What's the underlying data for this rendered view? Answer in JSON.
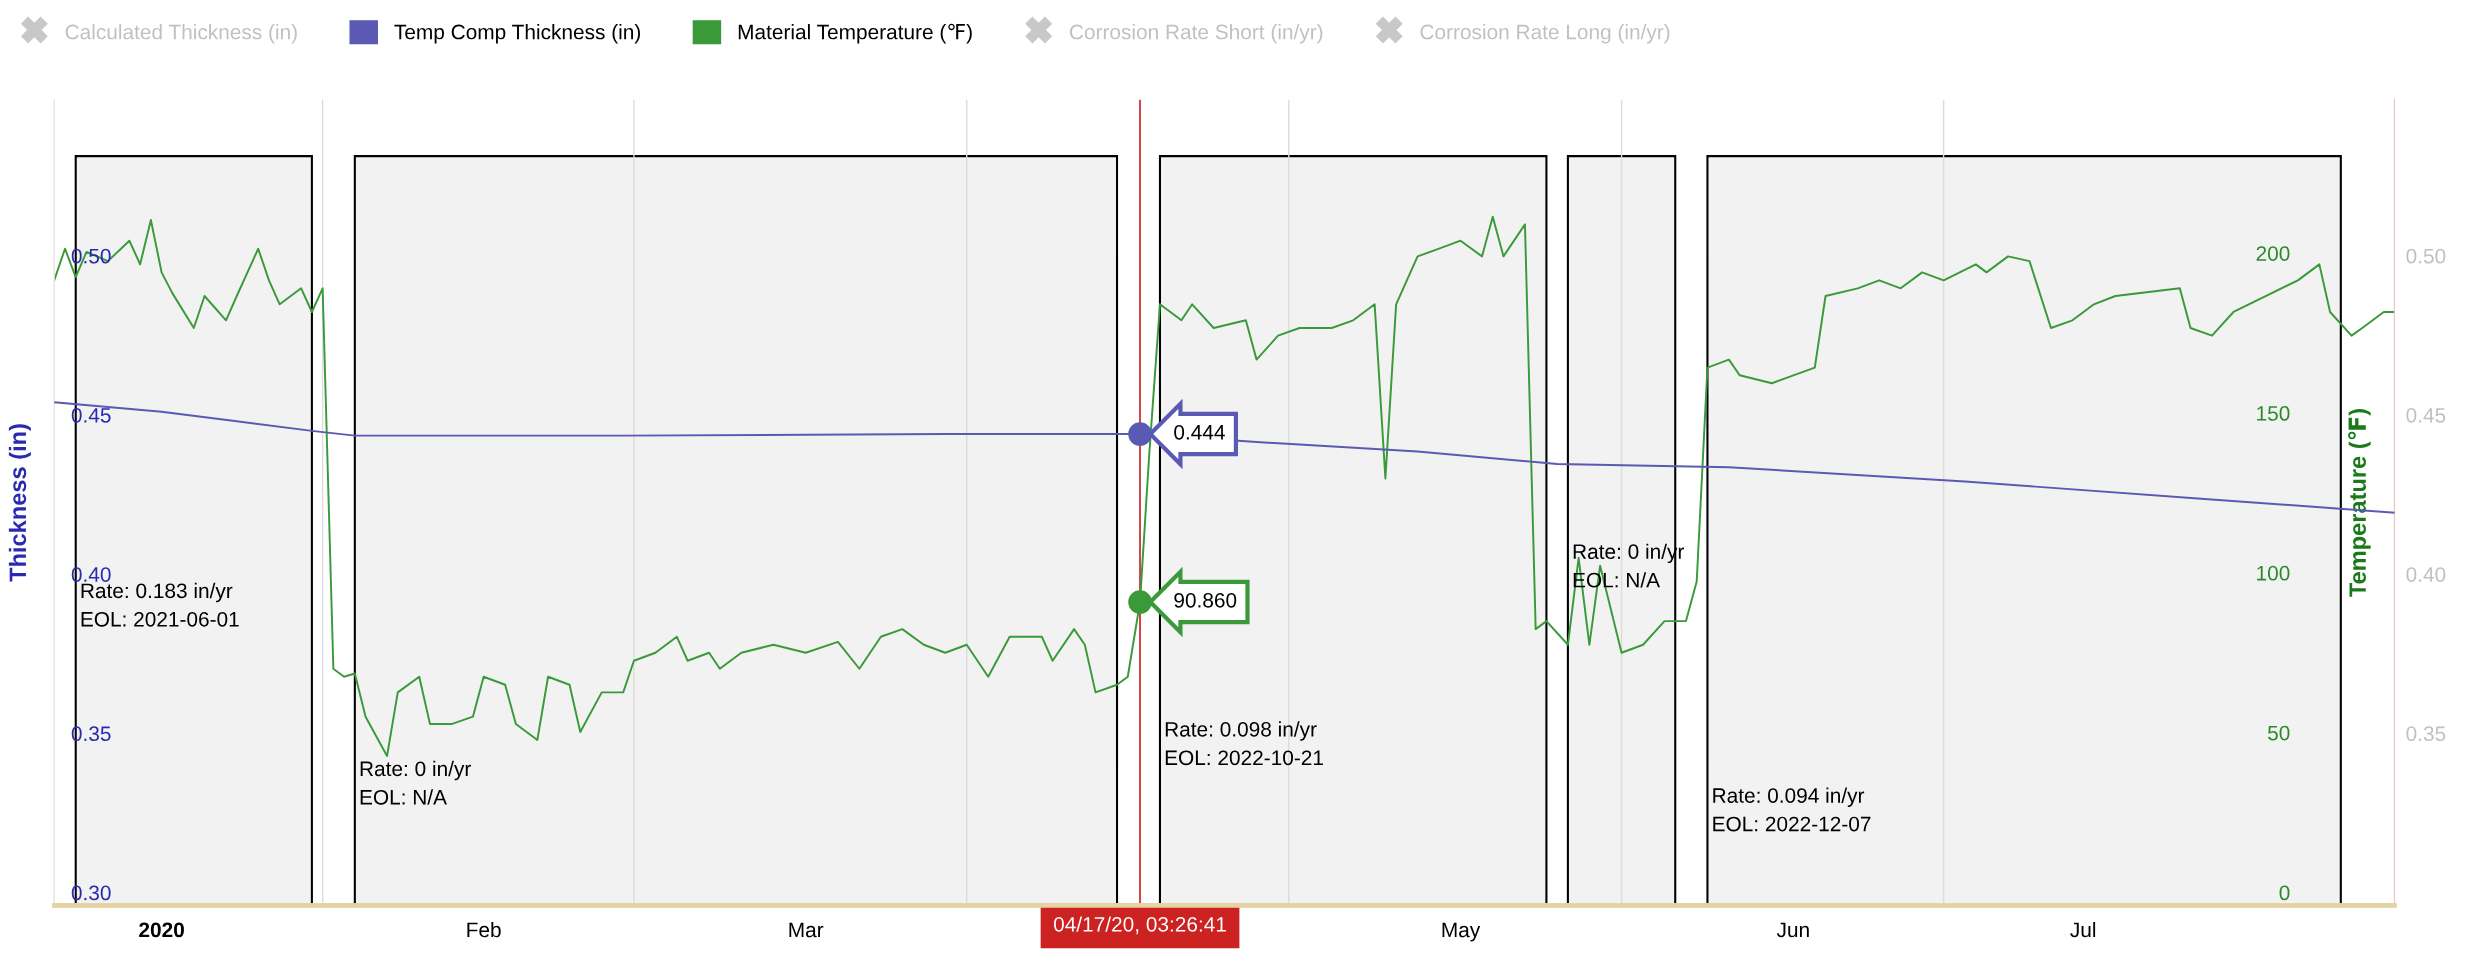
{
  "chart_data": {
    "type": "line",
    "ylabel": "Thickness (in)",
    "y2label": "Temperature (℉)",
    "xlim": [
      "2020-01-07",
      "2020-08-12"
    ],
    "xticks": [
      {
        "value": "2020-01-17",
        "label": "2020"
      },
      {
        "value": "2020-02-01",
        "label": null
      },
      {
        "value": "2020-02-16",
        "label": "Feb"
      },
      {
        "value": "2020-03-01",
        "label": null
      },
      {
        "value": "2020-03-17",
        "label": "Mar"
      },
      {
        "value": "2020-04-01",
        "label": null
      },
      {
        "value": "2020-05-01",
        "label": null
      },
      {
        "value": "2020-05-17",
        "label": "May"
      },
      {
        "value": "2020-06-01",
        "label": null
      },
      {
        "value": "2020-06-17",
        "label": "Jun"
      },
      {
        "value": "2020-07-01",
        "label": null
      },
      {
        "value": "2020-07-14",
        "label": "Jul"
      }
    ],
    "ylim": [
      0.296,
      0.549
    ],
    "yticks": [
      {
        "value": 0.3,
        "label": "0.30"
      },
      {
        "value": 0.35,
        "label": "0.35"
      },
      {
        "value": 0.4,
        "label": "0.40"
      },
      {
        "value": 0.45,
        "label": "0.45"
      },
      {
        "value": 0.5,
        "label": "0.50"
      }
    ],
    "y2lim": [
      -4,
      248
    ],
    "y2ticks": [
      0,
      50,
      100,
      150,
      200
    ],
    "y3lim": [
      0.296,
      0.549
    ],
    "y3ticks": [
      {
        "value": 0.35,
        "label": "0.35"
      },
      {
        "value": 0.4,
        "label": "0.40"
      },
      {
        "value": 0.45,
        "label": "0.45"
      },
      {
        "value": 0.5,
        "label": "0.50"
      }
    ],
    "grid": "x",
    "legend": "top",
    "series": [
      {
        "name": "Calculated Thickness (in)",
        "color": "#c8c8c8",
        "axis": "y3"
      },
      {
        "name": "Temp Comp Thickness (in)",
        "color": "#5a5ab4",
        "axis": "y",
        "x": [
          "2020-01-07",
          "2020-01-17",
          "2020-01-24",
          "2020-01-31",
          "2020-02-04",
          "2020-02-29",
          "2020-03-30",
          "2020-04-17T03:26",
          "2020-04-28",
          "2020-05-13",
          "2020-05-26",
          "2020-06-11",
          "2020-07-03",
          "2020-07-25",
          "2020-08-12"
        ],
        "values": [
          0.454,
          0.451,
          0.448,
          0.445,
          0.4435,
          0.4435,
          0.444,
          0.444,
          0.4415,
          0.4385,
          0.4346,
          0.4336,
          0.4291,
          0.4237,
          0.4193
        ],
        "value_labels": [
          null,
          null,
          null,
          null,
          null,
          null,
          null,
          "0.444",
          null,
          null,
          null,
          null,
          null,
          null,
          null
        ]
      },
      {
        "name": "Material Temperature (℉)",
        "color": "#3a9a3a",
        "axis": "y2",
        "x": [
          "2020-01-07",
          "2020-01-08",
          "2020-01-09",
          "2020-01-10",
          "2020-01-12",
          "2020-01-14",
          "2020-01-15",
          "2020-01-16",
          "2020-01-17",
          "2020-01-18",
          "2020-01-20",
          "2020-01-21",
          "2020-01-23",
          "2020-01-24",
          "2020-01-25",
          "2020-01-26",
          "2020-01-27",
          "2020-01-28",
          "2020-01-30",
          "2020-01-31",
          "2020-02-01",
          "2020-02-02",
          "2020-02-03",
          "2020-02-04",
          "2020-02-05",
          "2020-02-07",
          "2020-02-08",
          "2020-02-10",
          "2020-02-11",
          "2020-02-13",
          "2020-02-15",
          "2020-02-16",
          "2020-02-18",
          "2020-02-19",
          "2020-02-21",
          "2020-02-22",
          "2020-02-24",
          "2020-02-25",
          "2020-02-27",
          "2020-02-29",
          "2020-03-01",
          "2020-03-03",
          "2020-03-05",
          "2020-03-06",
          "2020-03-08",
          "2020-03-09",
          "2020-03-11",
          "2020-03-14",
          "2020-03-17",
          "2020-03-20",
          "2020-03-22",
          "2020-03-24",
          "2020-03-26",
          "2020-03-28",
          "2020-03-30",
          "2020-04-01",
          "2020-04-03",
          "2020-04-05",
          "2020-04-08",
          "2020-04-09",
          "2020-04-11",
          "2020-04-12",
          "2020-04-13",
          "2020-04-15",
          "2020-04-16",
          "2020-04-17T03:26",
          "2020-04-18",
          "2020-04-19",
          "2020-04-21",
          "2020-04-22",
          "2020-04-24",
          "2020-04-27",
          "2020-04-28",
          "2020-04-30",
          "2020-05-02",
          "2020-05-05",
          "2020-05-07",
          "2020-05-09",
          "2020-05-10",
          "2020-05-11",
          "2020-05-13",
          "2020-05-15",
          "2020-05-17",
          "2020-05-19",
          "2020-05-20",
          "2020-05-21",
          "2020-05-23",
          "2020-05-24",
          "2020-05-25",
          "2020-05-27",
          "2020-05-28",
          "2020-05-29",
          "2020-05-30",
          "2020-06-01",
          "2020-06-03",
          "2020-06-05",
          "2020-06-07",
          "2020-06-08",
          "2020-06-09",
          "2020-06-11",
          "2020-06-12",
          "2020-06-15",
          "2020-06-17",
          "2020-06-19",
          "2020-06-20",
          "2020-06-23",
          "2020-06-25",
          "2020-06-27",
          "2020-06-29",
          "2020-07-01",
          "2020-07-04",
          "2020-07-05",
          "2020-07-07",
          "2020-07-09",
          "2020-07-11",
          "2020-07-13",
          "2020-07-15",
          "2020-07-17",
          "2020-07-23",
          "2020-07-24",
          "2020-07-26",
          "2020-07-28",
          "2020-07-31",
          "2020-08-03",
          "2020-08-05",
          "2020-08-06",
          "2020-08-08",
          "2020-08-09",
          "2020-08-11",
          "2020-08-12"
        ],
        "values": [
          191.5,
          201.4,
          192.5,
          200.4,
          197.5,
          203.9,
          196.5,
          210.4,
          194,
          187.5,
          176.6,
          186.6,
          179,
          186.6,
          194,
          201.4,
          191.5,
          184,
          189,
          181.6,
          189,
          70,
          67.5,
          68.5,
          55,
          42.7,
          62.6,
          67.5,
          52.7,
          52.7,
          55,
          67.5,
          65,
          52.7,
          47.7,
          67.5,
          65,
          50.2,
          62.6,
          62.6,
          72.5,
          75,
          80,
          72.5,
          75,
          70,
          75,
          77.5,
          75,
          78.4,
          70,
          80,
          82.4,
          77.5,
          75,
          77.5,
          67.5,
          80,
          80,
          72.5,
          82.4,
          77.5,
          62.6,
          65,
          67.5,
          90.86,
          137,
          184,
          179,
          184,
          176.6,
          179,
          166.7,
          174.2,
          176.6,
          176.6,
          179,
          184,
          129.5,
          184,
          199,
          201.4,
          203.9,
          199,
          211.4,
          199,
          209,
          82.4,
          84.9,
          77.5,
          104.7,
          77.5,
          102.2,
          75,
          77.5,
          84.9,
          84.9,
          97.3,
          164.2,
          166.7,
          161.8,
          159.3,
          161.8,
          164.2,
          186.6,
          189,
          191.5,
          189,
          194,
          191.5,
          196.5,
          194,
          199,
          197.5,
          176.6,
          179,
          184,
          186.6,
          189,
          176.6,
          174.2,
          181.6,
          186.6,
          191.5,
          196.5,
          181.6,
          174.2,
          176.6,
          181.6,
          181.6
        ],
        "value_labels": [
          null,
          null,
          null,
          null,
          null,
          null,
          null,
          null,
          null,
          null,
          null,
          null,
          null,
          null,
          null,
          null,
          null,
          null,
          null,
          null,
          null,
          null,
          null,
          null,
          null,
          null,
          null,
          null,
          null,
          null,
          null,
          null,
          null,
          null,
          null,
          null,
          null,
          null,
          null,
          null,
          null,
          null,
          null,
          null,
          null,
          null,
          null,
          null,
          null,
          null,
          null,
          null,
          null,
          null,
          null,
          null,
          null,
          null,
          null,
          null,
          null,
          null,
          null,
          null,
          null,
          "90.860",
          null,
          null,
          null,
          null,
          null,
          null,
          null,
          null,
          null,
          null,
          null,
          null,
          null,
          null,
          null,
          null,
          null,
          null,
          null,
          null,
          null,
          null,
          null,
          null,
          null,
          null,
          null,
          null,
          null,
          null,
          null,
          null,
          null,
          null,
          null,
          null,
          null,
          null,
          null,
          null,
          null,
          null,
          null,
          null,
          null,
          null,
          null,
          null,
          null,
          null,
          null,
          null,
          null,
          null,
          null,
          null,
          null,
          null,
          null,
          null,
          null,
          null,
          null,
          null
        ]
      },
      {
        "name": "Corrosion Rate Short (in/yr)",
        "color": "#c8c8c8"
      },
      {
        "name": "Corrosion Rate Long (in/yr)",
        "color": "#c8c8c8"
      }
    ],
    "bands": [
      {
        "axis": "x",
        "from": "2020-01-09",
        "to": "2020-01-31",
        "color": "#f2f2f2"
      },
      {
        "axis": "x",
        "from": "2020-02-04",
        "to": "2020-04-15",
        "color": "#f2f2f2"
      },
      {
        "axis": "x",
        "from": "2020-04-19",
        "to": "2020-05-25",
        "color": "#f2f2f2"
      },
      {
        "axis": "x",
        "from": "2020-05-27",
        "to": "2020-06-06",
        "color": "#f2f2f2"
      },
      {
        "axis": "x",
        "from": "2020-06-09",
        "to": "2020-08-07",
        "color": "#f2f2f2"
      }
    ],
    "ref_lines": [
      {
        "axis": "x",
        "value": "2020-04-17T03:26",
        "label": "04/17/20, 03:26:41",
        "color": "#cc2222"
      }
    ],
    "annotations": [
      {
        "text": "Rate: 0.183 in/yr\nEOL: 2021-06-01",
        "x": "2020-01-09",
        "y": 0.4025
      },
      {
        "text": "Rate: 0 in/yr\nEOL: N/A",
        "x": "2020-02-04",
        "y": 0.3466
      },
      {
        "text": "Rate: 0.098 in/yr\nEOL: 2022-10-21",
        "x": "2020-04-19",
        "y": 0.359
      },
      {
        "text": "Rate: 0 in/yr\nEOL: N/A",
        "x": "2020-05-27",
        "y": 0.4148
      },
      {
        "text": "Rate: 0.094 in/yr\nEOL: 2022-12-07",
        "x": "2020-06-09",
        "y": 0.3382
      }
    ]
  }
}
